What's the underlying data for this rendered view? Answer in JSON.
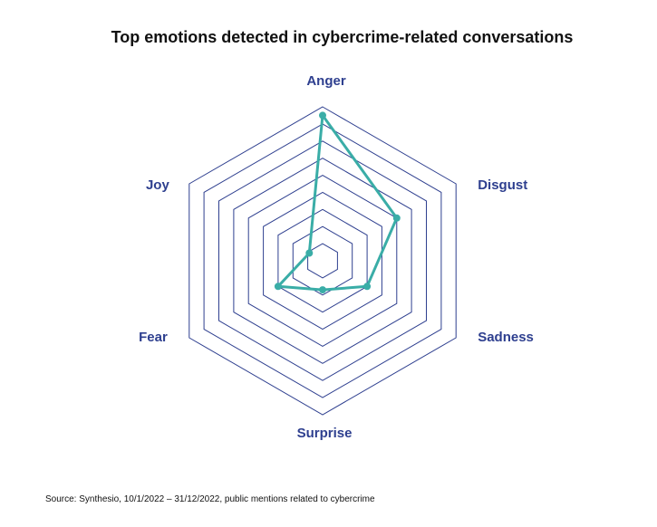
{
  "chart_data": {
    "type": "radar",
    "title": "Top emotions detected in cybercrime-related conversations",
    "axes": [
      "Anger",
      "Disgust",
      "Sadness",
      "Surprise",
      "Fear",
      "Joy"
    ],
    "series": [
      {
        "values": [
          8.5,
          5.0,
          3.0,
          1.7,
          3.0,
          0.9
        ]
      }
    ],
    "range": [
      0,
      9
    ],
    "ring_count": 9,
    "grid": true,
    "legend": "none",
    "colors": {
      "series": "#3aada7",
      "grid": "#2e3f8f",
      "labels": "#2e3f8f"
    }
  },
  "source_note": "Source: Synthesio, 10/1/2022 – 31/12/2022, public mentions related to cybercrime"
}
